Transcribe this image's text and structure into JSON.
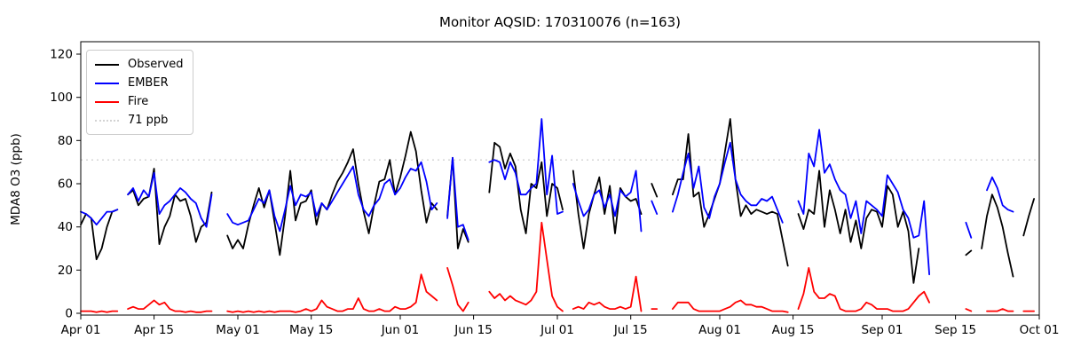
{
  "chart_data": {
    "type": "line",
    "title": "Monitor AQSID: 170310076 (n=163)",
    "ylabel": "MDA8 O3 (ppb)",
    "ylim": [
      0,
      126
    ],
    "yticks": [
      0,
      20,
      40,
      60,
      80,
      100,
      120
    ],
    "grid": false,
    "legend_position": "upper left",
    "threshold": {
      "value": 71,
      "label": "71 ppb",
      "color": "#d3d3d3",
      "style": "dotted"
    },
    "x_axis": {
      "n_days": 183,
      "start": "Apr 01",
      "end": "Oct 01",
      "ticks": [
        {
          "day": 0,
          "label": "Apr 01"
        },
        {
          "day": 14,
          "label": "Apr 15"
        },
        {
          "day": 30,
          "label": "May 01"
        },
        {
          "day": 44,
          "label": "May 15"
        },
        {
          "day": 61,
          "label": "Jun 01"
        },
        {
          "day": 75,
          "label": "Jun 15"
        },
        {
          "day": 91,
          "label": "Jul 01"
        },
        {
          "day": 105,
          "label": "Jul 15"
        },
        {
          "day": 122,
          "label": "Aug 01"
        },
        {
          "day": 136,
          "label": "Aug 15"
        },
        {
          "day": 153,
          "label": "Sep 01"
        },
        {
          "day": 167,
          "label": "Sep 15"
        },
        {
          "day": 183,
          "label": "Oct 01"
        }
      ]
    },
    "series": [
      {
        "name": "Observed",
        "color": "#000000",
        "values": [
          41,
          46,
          44,
          25,
          30,
          40,
          47,
          48,
          null,
          55,
          57,
          50,
          53,
          54,
          67,
          32,
          40,
          45,
          55,
          52,
          53,
          45,
          33,
          40,
          42,
          56,
          null,
          null,
          36,
          30,
          34,
          30,
          41,
          50,
          58,
          49,
          57,
          42,
          27,
          45,
          66,
          43,
          51,
          52,
          57,
          41,
          51,
          48,
          55,
          61,
          65,
          70,
          76,
          60,
          47,
          37,
          50,
          61,
          62,
          71,
          55,
          63,
          73,
          84,
          75,
          57,
          42,
          51,
          48,
          null,
          45,
          72,
          30,
          39,
          33,
          null,
          null,
          null,
          56,
          79,
          77,
          67,
          74,
          68,
          48,
          37,
          60,
          58,
          70,
          45,
          60,
          58,
          48,
          null,
          66,
          46,
          30,
          46,
          55,
          63,
          46,
          59,
          37,
          58,
          54,
          52,
          53,
          46,
          null,
          60,
          54,
          null,
          null,
          55,
          62,
          62,
          83,
          54,
          56,
          40,
          46,
          53,
          60,
          75,
          90,
          62,
          45,
          50,
          46,
          48,
          47,
          46,
          47,
          46,
          34,
          22,
          null,
          46,
          39,
          48,
          46,
          66,
          40,
          57,
          48,
          37,
          48,
          33,
          43,
          30,
          44,
          48,
          47,
          40,
          59,
          55,
          40,
          47,
          38,
          14,
          30,
          null,
          null,
          null,
          null,
          null,
          null,
          null,
          null,
          27,
          29,
          null,
          30,
          45,
          55,
          49,
          40,
          28,
          17,
          null,
          36,
          45,
          53
        ]
      },
      {
        "name": "EMBER",
        "color": "#0000ff",
        "values": [
          47,
          46,
          44,
          41,
          44,
          47,
          47,
          48,
          null,
          55,
          58,
          52,
          57,
          54,
          65,
          46,
          50,
          52,
          55,
          58,
          56,
          53,
          51,
          44,
          40,
          55,
          null,
          null,
          46,
          42,
          41,
          42,
          43,
          48,
          53,
          51,
          57,
          45,
          38,
          48,
          59,
          50,
          55,
          54,
          56,
          45,
          51,
          48,
          52,
          56,
          60,
          64,
          68,
          55,
          48,
          45,
          50,
          53,
          60,
          62,
          55,
          58,
          63,
          67,
          66,
          70,
          61,
          48,
          51,
          null,
          44,
          72,
          40,
          41,
          34,
          null,
          null,
          null,
          70,
          71,
          70,
          62,
          70,
          65,
          55,
          55,
          58,
          60,
          90,
          55,
          73,
          46,
          47,
          null,
          60,
          52,
          45,
          48,
          55,
          57,
          49,
          55,
          45,
          57,
          54,
          56,
          66,
          38,
          null,
          52,
          46,
          null,
          null,
          47,
          55,
          65,
          74,
          58,
          68,
          49,
          44,
          54,
          60,
          70,
          79,
          62,
          55,
          52,
          50,
          50,
          53,
          52,
          54,
          48,
          42,
          null,
          null,
          52,
          46,
          74,
          68,
          85,
          65,
          69,
          62,
          57,
          55,
          44,
          52,
          37,
          52,
          50,
          48,
          45,
          64,
          60,
          56,
          48,
          44,
          35,
          36,
          52,
          18,
          null,
          null,
          null,
          null,
          null,
          null,
          42,
          35,
          null,
          null,
          57,
          63,
          58,
          50,
          48,
          47,
          null,
          null,
          null,
          null
        ]
      },
      {
        "name": "Fire",
        "color": "#ff0000",
        "values": [
          1,
          1,
          1,
          0.5,
          1,
          0.5,
          1,
          1,
          null,
          2,
          3,
          2,
          2,
          4,
          6,
          4,
          5,
          2,
          1,
          1,
          0.5,
          1,
          0.5,
          0.5,
          1,
          1,
          null,
          null,
          1,
          0.5,
          1,
          0.5,
          1,
          0.5,
          1,
          0.5,
          1,
          0.5,
          1,
          1,
          1,
          0.5,
          1,
          2,
          1,
          2,
          6,
          3,
          2,
          1,
          1,
          2,
          2,
          7,
          2,
          1,
          1,
          2,
          1,
          1,
          3,
          2,
          2,
          3,
          5,
          18,
          10,
          8,
          6,
          null,
          21,
          13,
          4,
          1,
          5,
          null,
          null,
          null,
          10,
          7,
          9,
          6,
          8,
          6,
          5,
          4,
          6,
          10,
          42,
          25,
          8,
          3,
          1,
          null,
          2,
          3,
          2,
          5,
          4,
          5,
          3,
          2,
          2,
          3,
          2,
          3,
          17,
          1,
          null,
          2,
          2,
          null,
          null,
          2,
          5,
          5,
          5,
          2,
          1,
          1,
          1,
          1,
          1,
          2,
          3,
          5,
          6,
          4,
          4,
          3,
          3,
          2,
          1,
          1,
          1,
          0.5,
          null,
          2,
          9,
          21,
          10,
          7,
          7,
          9,
          8,
          2,
          1,
          1,
          1,
          2,
          5,
          4,
          2,
          2,
          2,
          1,
          1,
          1,
          2,
          5,
          8,
          10,
          5,
          null,
          null,
          null,
          null,
          null,
          null,
          2,
          1,
          null,
          null,
          1,
          1,
          1,
          2,
          1,
          1,
          null,
          1,
          1,
          1
        ]
      }
    ]
  }
}
